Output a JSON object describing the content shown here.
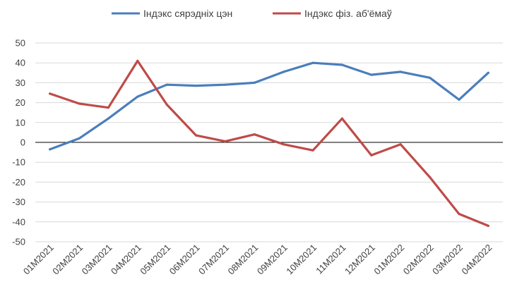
{
  "chart_data": {
    "type": "line",
    "categories": [
      "01M2021",
      "02M2021",
      "03M2021",
      "04M2021",
      "05M2021",
      "06M2021",
      "07M2021",
      "08M2021",
      "09M2021",
      "10M2021",
      "11M2021",
      "12M2021",
      "01M2022",
      "02M2022",
      "03M2022",
      "04M2022"
    ],
    "series": [
      {
        "name": "Індэкс сярэдніх цэн",
        "color": "#4a7ebb",
        "values": [
          -3.5,
          2,
          12,
          23,
          29,
          28.5,
          29,
          30,
          35.5,
          40,
          39,
          34,
          35.5,
          32.5,
          21.5,
          35
        ]
      },
      {
        "name": "Індэкс фіз. аб'ёмаў",
        "color": "#be4b48",
        "values": [
          24.5,
          19.5,
          17.5,
          41,
          19,
          3.5,
          0.5,
          4,
          -1,
          -4,
          12,
          -6.5,
          -1,
          -17.5,
          -36,
          -42
        ]
      }
    ],
    "ylim": [
      -50,
      50
    ],
    "yticks": [
      -50,
      -40,
      -30,
      -20,
      -10,
      0,
      10,
      20,
      30,
      40,
      50
    ],
    "grid": true,
    "legend_position": "top",
    "title": "",
    "xlabel": "",
    "ylabel": ""
  }
}
